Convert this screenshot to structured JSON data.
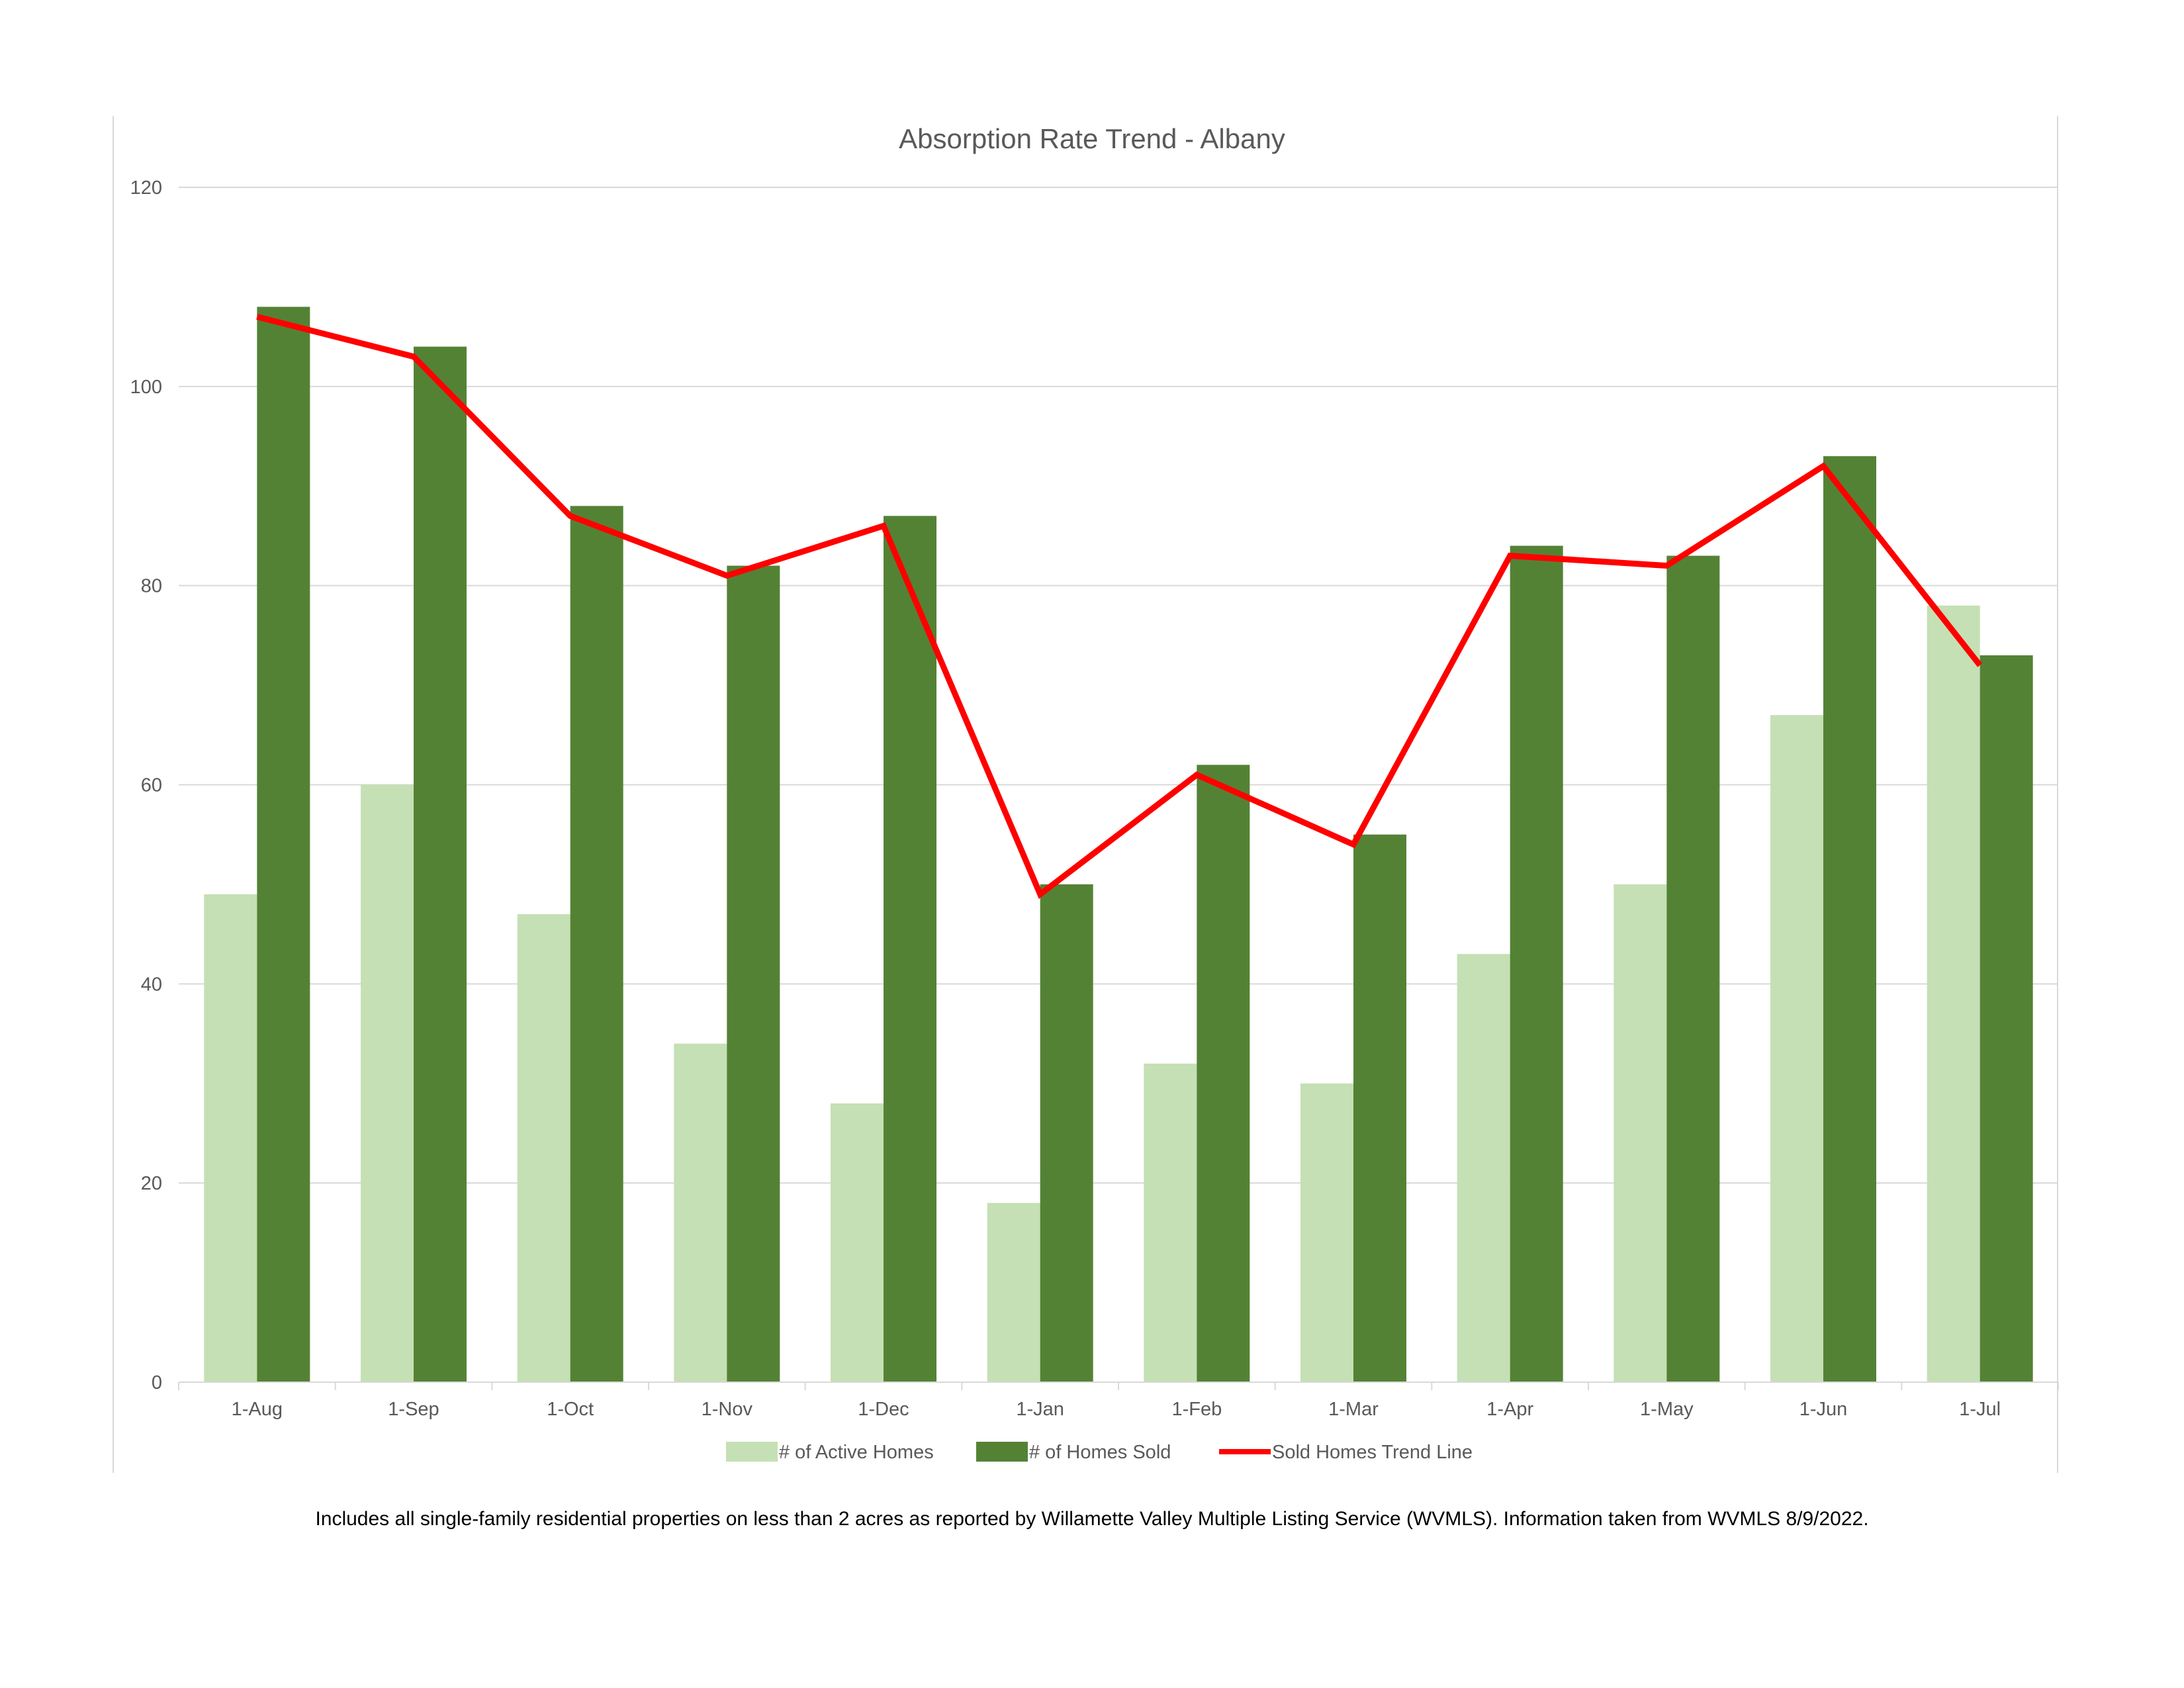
{
  "colors": {
    "active": "#c5e0b4",
    "sold": "#548235",
    "trend": "#ff0000",
    "grid": "#d9d9d9",
    "axis_text": "#595959"
  },
  "chart_data": {
    "type": "bar",
    "title": "Absorption Rate Trend - Albany",
    "xlabel": "",
    "ylabel": "",
    "ylim": [
      0,
      120
    ],
    "yticks": [
      0,
      20,
      40,
      60,
      80,
      100,
      120
    ],
    "grid": true,
    "legend_position": "bottom",
    "categories": [
      "1-Aug",
      "1-Sep",
      "1-Oct",
      "1-Nov",
      "1-Dec",
      "1-Jan",
      "1-Feb",
      "1-Mar",
      "1-Apr",
      "1-May",
      "1-Jun",
      "1-Jul"
    ],
    "series": [
      {
        "name": "# of Active Homes",
        "kind": "bar",
        "values": [
          49,
          60,
          47,
          34,
          28,
          18,
          32,
          30,
          43,
          50,
          67,
          78
        ]
      },
      {
        "name": "# of Homes Sold",
        "kind": "bar",
        "values": [
          108,
          104,
          88,
          82,
          87,
          50,
          62,
          55,
          84,
          83,
          93,
          73
        ]
      },
      {
        "name": "Sold Homes Trend Line",
        "kind": "line",
        "values": [
          107,
          103,
          87,
          81,
          86,
          49,
          61,
          54,
          83,
          82,
          92,
          72
        ]
      }
    ]
  },
  "footnote": "Includes all single-family residential properties on less than 2 acres as reported by Willamette Valley Multiple Listing Service (WVMLS). Information taken from WVMLS 8/9/2022."
}
